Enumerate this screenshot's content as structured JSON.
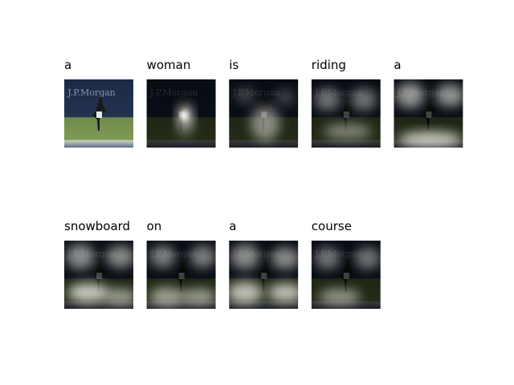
{
  "photo_text": "J.P.Morgan",
  "panels": [
    {
      "word": "a"
    },
    {
      "word": "woman"
    },
    {
      "word": "is"
    },
    {
      "word": "riding"
    },
    {
      "word": "a"
    },
    {
      "word": "snowboard"
    },
    {
      "word": "on"
    },
    {
      "word": "a"
    },
    {
      "word": "course"
    }
  ]
}
